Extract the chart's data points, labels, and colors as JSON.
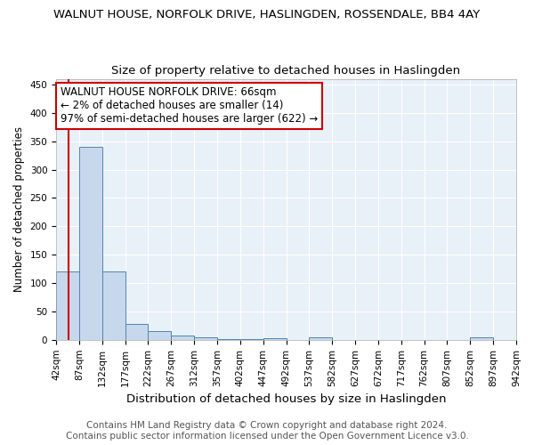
{
  "title": "WALNUT HOUSE, NORFOLK DRIVE, HASLINGDEN, ROSSENDALE, BB4 4AY",
  "subtitle": "Size of property relative to detached houses in Haslingden",
  "xlabel": "Distribution of detached houses by size in Haslingden",
  "ylabel": "Number of detached properties",
  "bin_edges": [
    42,
    87,
    132,
    177,
    222,
    267,
    312,
    357,
    402,
    447,
    492,
    537,
    582,
    627,
    672,
    717,
    762,
    807,
    852,
    897,
    942
  ],
  "bar_heights": [
    120,
    340,
    120,
    28,
    15,
    8,
    5,
    2,
    2,
    3,
    0,
    4,
    0,
    0,
    0,
    0,
    0,
    0,
    4,
    0
  ],
  "bar_color": "#c8d8ec",
  "bar_edge_color": "#4f86b0",
  "ylim": [
    0,
    460
  ],
  "yticks": [
    0,
    50,
    100,
    150,
    200,
    250,
    300,
    350,
    400,
    450
  ],
  "property_sqm": 66,
  "redline_color": "#cc0000",
  "annotation_line1": "WALNUT HOUSE NORFOLK DRIVE: 66sqm",
  "annotation_line2": "← 2% of detached houses are smaller (14)",
  "annotation_line3": "97% of semi-detached houses are larger (622) →",
  "annotation_box_color": "#ffffff",
  "annotation_box_edge": "#cc0000",
  "bg_color": "#e8f0f8",
  "footer_line1": "Contains HM Land Registry data © Crown copyright and database right 2024.",
  "footer_line2": "Contains public sector information licensed under the Open Government Licence v3.0.",
  "title_fontsize": 9.5,
  "subtitle_fontsize": 9.5,
  "xlabel_fontsize": 9.5,
  "ylabel_fontsize": 8.5,
  "tick_label_fontsize": 7.5,
  "annotation_fontsize": 8.5,
  "footer_fontsize": 7.5
}
